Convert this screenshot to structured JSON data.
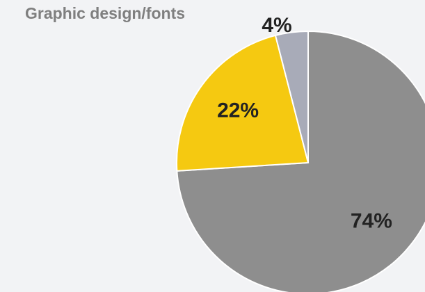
{
  "chart_data": {
    "type": "pie",
    "title": "Graphic design/fonts",
    "slices": [
      {
        "label": "74%",
        "value": 74,
        "color": "#8e8e8e"
      },
      {
        "label": "22%",
        "value": 22,
        "color": "#f5c911"
      },
      {
        "label": "4%",
        "value": 4,
        "color": "#a8abb8"
      }
    ],
    "start_angle_deg": 0,
    "direction": "clockwise",
    "legend": "none"
  }
}
